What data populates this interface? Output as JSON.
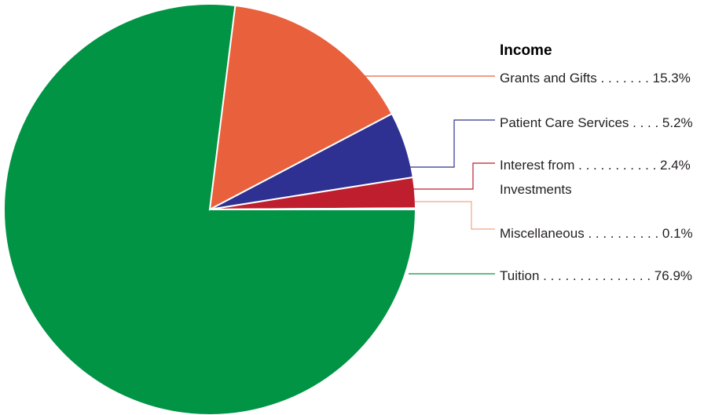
{
  "chart_data": {
    "type": "pie",
    "title": "Income",
    "start": "3 o'clock",
    "direction": "clockwise",
    "slices": [
      {
        "name": "Tuition",
        "display": "Tuition . . . . . . . . . . . . . . . 76.9%",
        "value": 76.9,
        "color": "#009444"
      },
      {
        "name": "Grants and Gifts",
        "display": "Grants and Gifts . . . . . . . 15.3%",
        "value": 15.3,
        "color": "#e8603c"
      },
      {
        "name": "Patient Care Services",
        "display": "Patient Care Services . . . . 5.2%",
        "value": 5.2,
        "color": "#2e3192"
      },
      {
        "name": "Interest from Investments",
        "display": "Interest from . . . . . . . . . . . 2.4%",
        "display2": "Investments",
        "value": 2.4,
        "color": "#be1e2d"
      },
      {
        "name": "Miscellaneous",
        "display": "Miscellaneous . . . . . . . . . . 0.1%",
        "value": 0.1,
        "color": "#ffe066"
      }
    ],
    "legend": {
      "position": "right",
      "connector_lines": true
    }
  }
}
